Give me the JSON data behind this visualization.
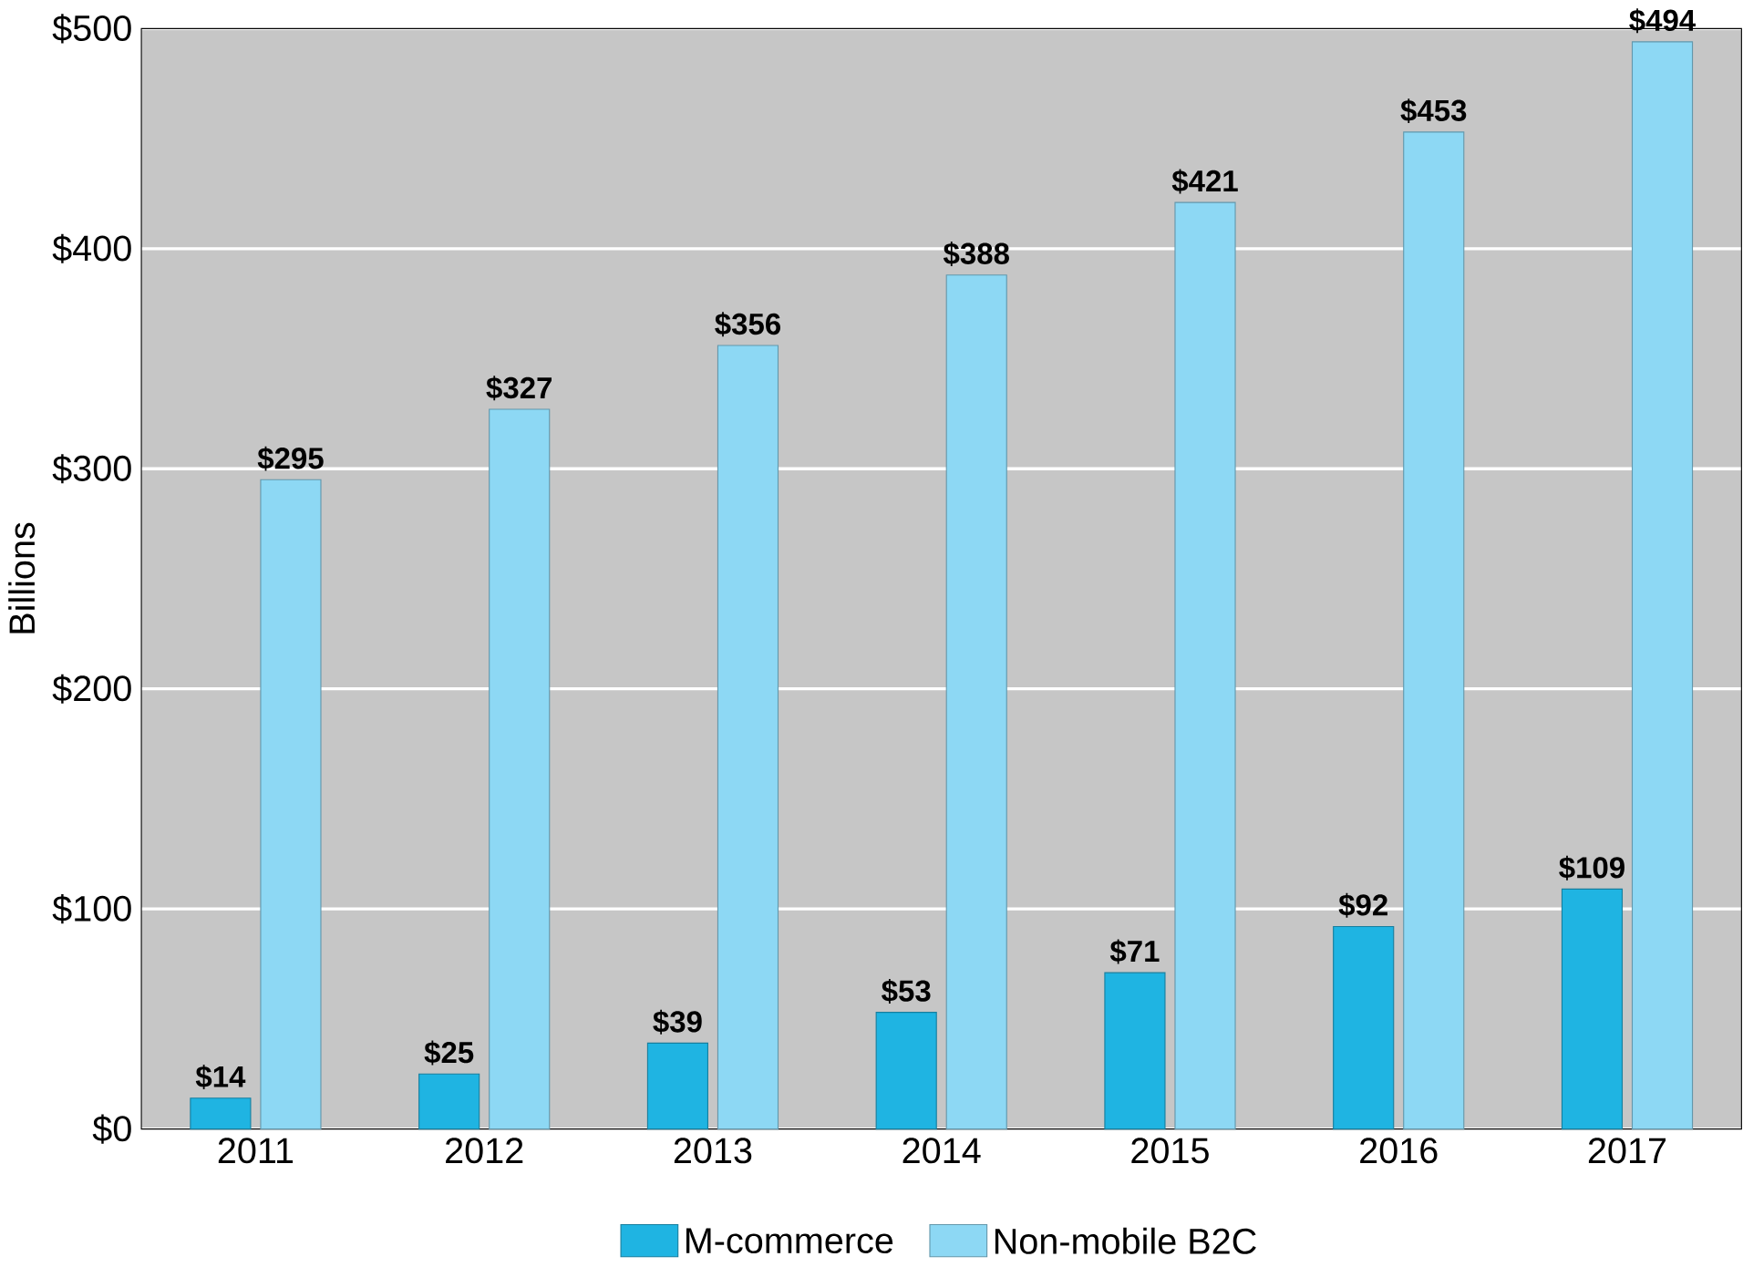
{
  "chart_data": {
    "type": "bar",
    "ylabel": "Billions",
    "categories": [
      "2011",
      "2012",
      "2013",
      "2014",
      "2015",
      "2016",
      "2017"
    ],
    "series": [
      {
        "name": "M-commerce",
        "color": "#1fb4e2",
        "values": [
          14,
          25,
          39,
          53,
          71,
          92,
          109
        ],
        "value_labels": [
          "$14",
          "$25",
          "$39",
          "$53",
          "$71",
          "$92",
          "$109"
        ]
      },
      {
        "name": "Non-mobile B2C",
        "color": "#8dd8f4",
        "values": [
          295,
          327,
          356,
          388,
          421,
          453,
          494
        ],
        "value_labels": [
          "$295",
          "$327",
          "$356",
          "$388",
          "$421",
          "$453",
          "$494"
        ]
      }
    ],
    "ylim": [
      0,
      500
    ],
    "yticks": [
      {
        "value": 0,
        "label": "$0"
      },
      {
        "value": 100,
        "label": "$100"
      },
      {
        "value": 200,
        "label": "$200"
      },
      {
        "value": 300,
        "label": "$300"
      },
      {
        "value": 400,
        "label": "$400"
      },
      {
        "value": 500,
        "label": "$500"
      }
    ],
    "grid": "y",
    "legend": "bottom"
  }
}
